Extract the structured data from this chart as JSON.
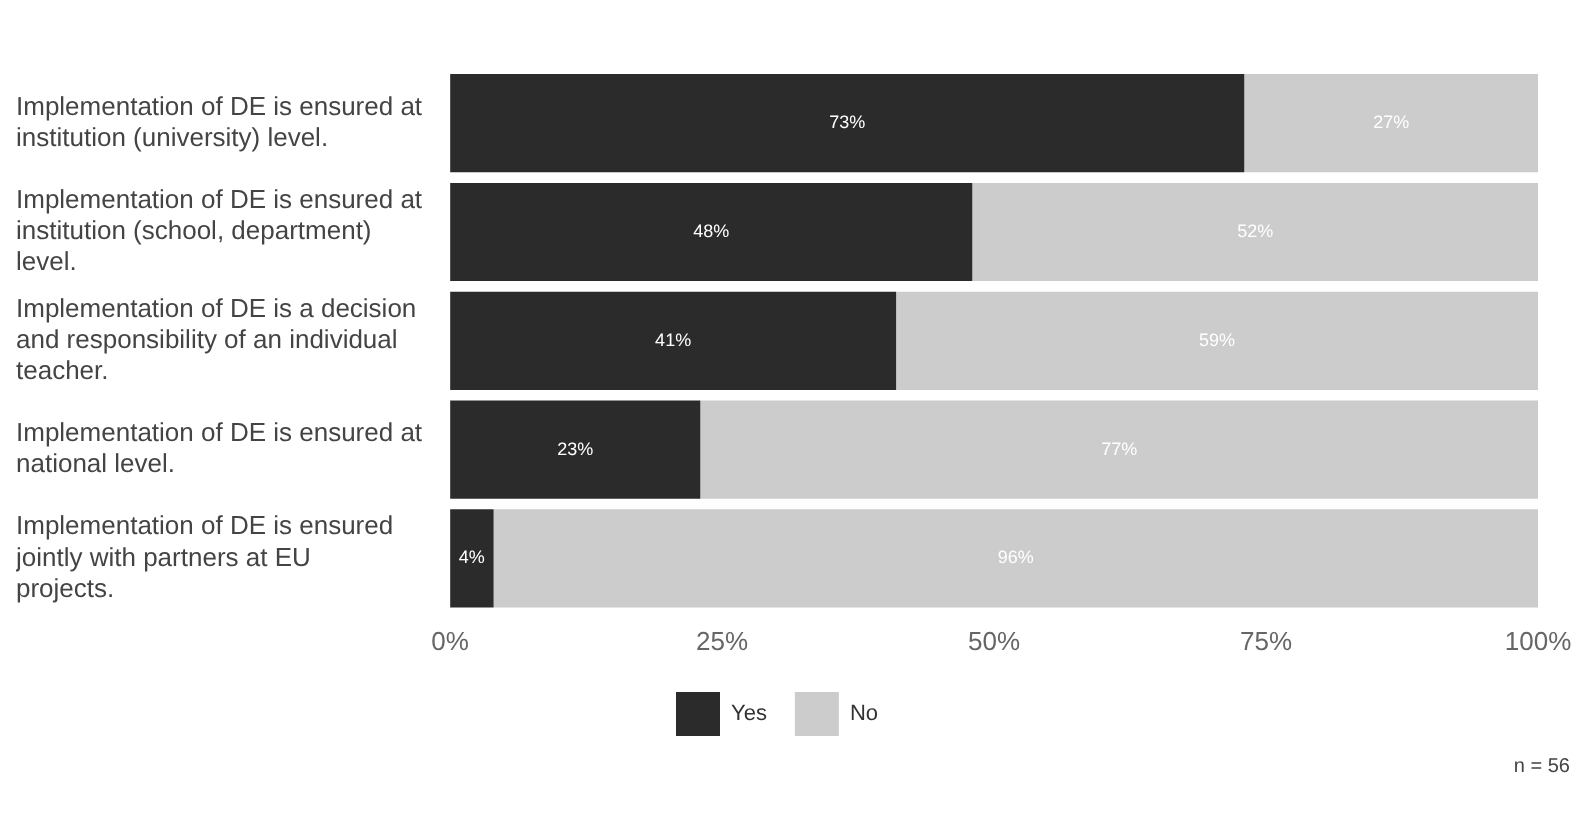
{
  "chart_data": {
    "type": "bar",
    "orientation": "horizontal",
    "stacked": true,
    "categories": [
      "Implementation of DE is ensured at institution (university) level.",
      "Implementation of DE is ensured at institution (school, department) level.",
      "Implementation of DE is a decision and responsibility of an individual teacher.",
      "Implementation of DE is ensured at national level.",
      "Implementation of DE is ensured jointly with partners at EU projects."
    ],
    "series": [
      {
        "name": "Yes",
        "color": "#2b2b2b",
        "values": [
          73,
          48,
          41,
          23,
          4
        ],
        "value_labels": [
          "73%",
          "48%",
          "41%",
          "23%",
          "4%"
        ]
      },
      {
        "name": "No",
        "color": "#cccccc",
        "values": [
          27,
          52,
          59,
          77,
          96
        ],
        "value_labels": [
          "27%",
          "52%",
          "59%",
          "77%",
          "96%"
        ]
      }
    ],
    "xlim": [
      0,
      100
    ],
    "xticks": [
      {
        "value": 0,
        "label": "0%"
      },
      {
        "value": 25,
        "label": "25%"
      },
      {
        "value": 50,
        "label": "50%"
      },
      {
        "value": 75,
        "label": "75%"
      },
      {
        "value": 100,
        "label": "100%"
      }
    ],
    "grid": false,
    "legend": "bottom",
    "annotations": [
      "n = 56"
    ]
  }
}
